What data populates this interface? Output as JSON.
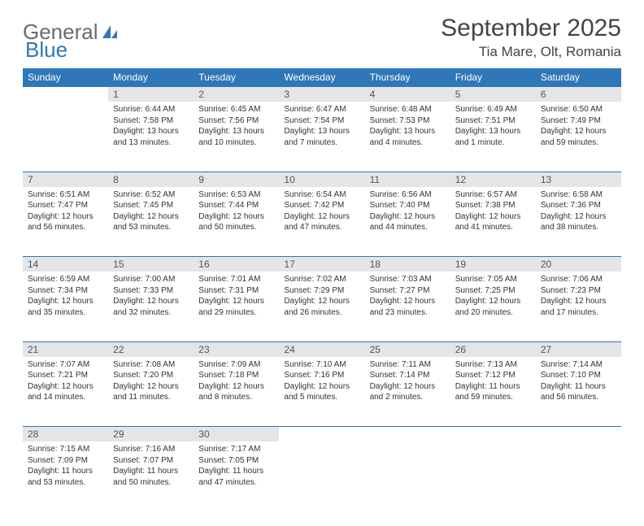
{
  "brand": {
    "part1": "General",
    "part2": "Blue"
  },
  "title": "September 2025",
  "location": "Tia Mare, Olt, Romania",
  "header_bg": "#2e77b8",
  "header_text": "#ffffff",
  "daynum_bg": "#e3e5e7",
  "dow": [
    "Sunday",
    "Monday",
    "Tuesday",
    "Wednesday",
    "Thursday",
    "Friday",
    "Saturday"
  ],
  "weeks": [
    {
      "nums": [
        "",
        "1",
        "2",
        "3",
        "4",
        "5",
        "6"
      ],
      "cells": [
        null,
        {
          "sr": "Sunrise: 6:44 AM",
          "ss": "Sunset: 7:58 PM",
          "dl": "Daylight: 13 hours and 13 minutes."
        },
        {
          "sr": "Sunrise: 6:45 AM",
          "ss": "Sunset: 7:56 PM",
          "dl": "Daylight: 13 hours and 10 minutes."
        },
        {
          "sr": "Sunrise: 6:47 AM",
          "ss": "Sunset: 7:54 PM",
          "dl": "Daylight: 13 hours and 7 minutes."
        },
        {
          "sr": "Sunrise: 6:48 AM",
          "ss": "Sunset: 7:53 PM",
          "dl": "Daylight: 13 hours and 4 minutes."
        },
        {
          "sr": "Sunrise: 6:49 AM",
          "ss": "Sunset: 7:51 PM",
          "dl": "Daylight: 13 hours and 1 minute."
        },
        {
          "sr": "Sunrise: 6:50 AM",
          "ss": "Sunset: 7:49 PM",
          "dl": "Daylight: 12 hours and 59 minutes."
        }
      ]
    },
    {
      "nums": [
        "7",
        "8",
        "9",
        "10",
        "11",
        "12",
        "13"
      ],
      "cells": [
        {
          "sr": "Sunrise: 6:51 AM",
          "ss": "Sunset: 7:47 PM",
          "dl": "Daylight: 12 hours and 56 minutes."
        },
        {
          "sr": "Sunrise: 6:52 AM",
          "ss": "Sunset: 7:45 PM",
          "dl": "Daylight: 12 hours and 53 minutes."
        },
        {
          "sr": "Sunrise: 6:53 AM",
          "ss": "Sunset: 7:44 PM",
          "dl": "Daylight: 12 hours and 50 minutes."
        },
        {
          "sr": "Sunrise: 6:54 AM",
          "ss": "Sunset: 7:42 PM",
          "dl": "Daylight: 12 hours and 47 minutes."
        },
        {
          "sr": "Sunrise: 6:56 AM",
          "ss": "Sunset: 7:40 PM",
          "dl": "Daylight: 12 hours and 44 minutes."
        },
        {
          "sr": "Sunrise: 6:57 AM",
          "ss": "Sunset: 7:38 PM",
          "dl": "Daylight: 12 hours and 41 minutes."
        },
        {
          "sr": "Sunrise: 6:58 AM",
          "ss": "Sunset: 7:36 PM",
          "dl": "Daylight: 12 hours and 38 minutes."
        }
      ]
    },
    {
      "nums": [
        "14",
        "15",
        "16",
        "17",
        "18",
        "19",
        "20"
      ],
      "cells": [
        {
          "sr": "Sunrise: 6:59 AM",
          "ss": "Sunset: 7:34 PM",
          "dl": "Daylight: 12 hours and 35 minutes."
        },
        {
          "sr": "Sunrise: 7:00 AM",
          "ss": "Sunset: 7:33 PM",
          "dl": "Daylight: 12 hours and 32 minutes."
        },
        {
          "sr": "Sunrise: 7:01 AM",
          "ss": "Sunset: 7:31 PM",
          "dl": "Daylight: 12 hours and 29 minutes."
        },
        {
          "sr": "Sunrise: 7:02 AM",
          "ss": "Sunset: 7:29 PM",
          "dl": "Daylight: 12 hours and 26 minutes."
        },
        {
          "sr": "Sunrise: 7:03 AM",
          "ss": "Sunset: 7:27 PM",
          "dl": "Daylight: 12 hours and 23 minutes."
        },
        {
          "sr": "Sunrise: 7:05 AM",
          "ss": "Sunset: 7:25 PM",
          "dl": "Daylight: 12 hours and 20 minutes."
        },
        {
          "sr": "Sunrise: 7:06 AM",
          "ss": "Sunset: 7:23 PM",
          "dl": "Daylight: 12 hours and 17 minutes."
        }
      ]
    },
    {
      "nums": [
        "21",
        "22",
        "23",
        "24",
        "25",
        "26",
        "27"
      ],
      "cells": [
        {
          "sr": "Sunrise: 7:07 AM",
          "ss": "Sunset: 7:21 PM",
          "dl": "Daylight: 12 hours and 14 minutes."
        },
        {
          "sr": "Sunrise: 7:08 AM",
          "ss": "Sunset: 7:20 PM",
          "dl": "Daylight: 12 hours and 11 minutes."
        },
        {
          "sr": "Sunrise: 7:09 AM",
          "ss": "Sunset: 7:18 PM",
          "dl": "Daylight: 12 hours and 8 minutes."
        },
        {
          "sr": "Sunrise: 7:10 AM",
          "ss": "Sunset: 7:16 PM",
          "dl": "Daylight: 12 hours and 5 minutes."
        },
        {
          "sr": "Sunrise: 7:11 AM",
          "ss": "Sunset: 7:14 PM",
          "dl": "Daylight: 12 hours and 2 minutes."
        },
        {
          "sr": "Sunrise: 7:13 AM",
          "ss": "Sunset: 7:12 PM",
          "dl": "Daylight: 11 hours and 59 minutes."
        },
        {
          "sr": "Sunrise: 7:14 AM",
          "ss": "Sunset: 7:10 PM",
          "dl": "Daylight: 11 hours and 56 minutes."
        }
      ]
    },
    {
      "nums": [
        "28",
        "29",
        "30",
        "",
        "",
        "",
        ""
      ],
      "cells": [
        {
          "sr": "Sunrise: 7:15 AM",
          "ss": "Sunset: 7:09 PM",
          "dl": "Daylight: 11 hours and 53 minutes."
        },
        {
          "sr": "Sunrise: 7:16 AM",
          "ss": "Sunset: 7:07 PM",
          "dl": "Daylight: 11 hours and 50 minutes."
        },
        {
          "sr": "Sunrise: 7:17 AM",
          "ss": "Sunset: 7:05 PM",
          "dl": "Daylight: 11 hours and 47 minutes."
        },
        null,
        null,
        null,
        null
      ]
    }
  ]
}
